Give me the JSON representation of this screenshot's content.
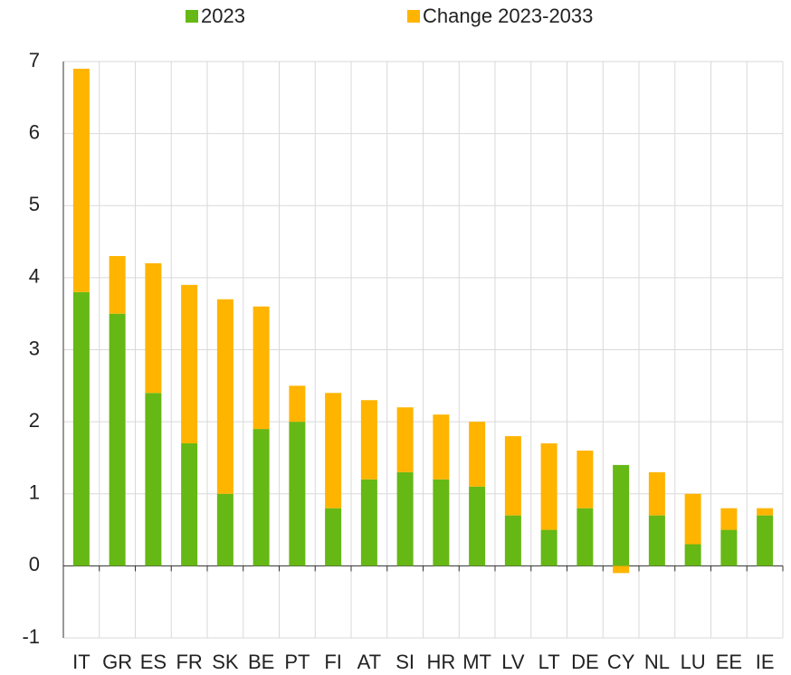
{
  "chart_data": {
    "type": "stacked-bar",
    "categories": [
      "IT",
      "GR",
      "ES",
      "FR",
      "SK",
      "BE",
      "PT",
      "FI",
      "AT",
      "SI",
      "HR",
      "MT",
      "LV",
      "LT",
      "DE",
      "CY",
      "NL",
      "LU",
      "EE",
      "IE"
    ],
    "series": [
      {
        "name": "2023",
        "color": "#66b814",
        "values": [
          3.8,
          3.5,
          2.4,
          1.7,
          1.0,
          1.9,
          2.0,
          0.8,
          1.2,
          1.3,
          1.2,
          1.1,
          0.7,
          0.5,
          0.8,
          1.4,
          0.7,
          0.3,
          0.5,
          0.7
        ]
      },
      {
        "name": "Change 2023-2033",
        "color": "#ffb400",
        "values": [
          3.1,
          0.8,
          1.8,
          2.2,
          2.7,
          1.7,
          0.5,
          1.6,
          1.1,
          0.9,
          0.9,
          0.9,
          1.1,
          1.2,
          0.8,
          -0.1,
          0.6,
          0.7,
          0.3,
          0.1
        ]
      }
    ],
    "ylim": [
      -1,
      7
    ],
    "yticks": [
      -1,
      0,
      1,
      2,
      3,
      4,
      5,
      6,
      7
    ],
    "grid": true,
    "legend": "top"
  }
}
